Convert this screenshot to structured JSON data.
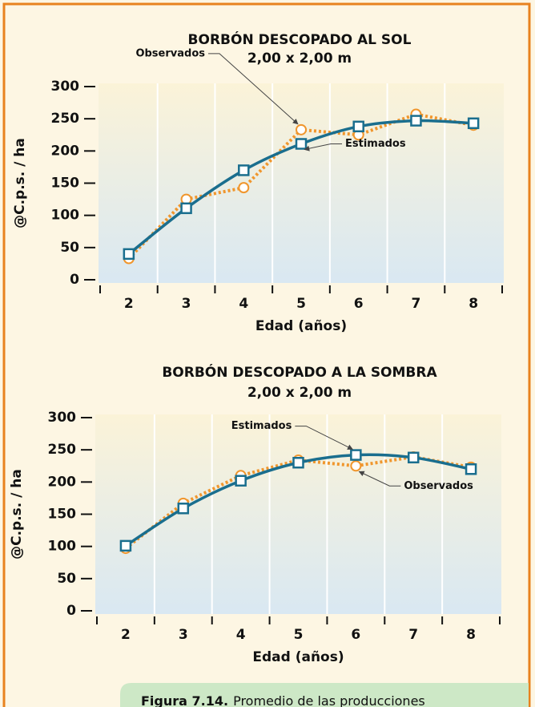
{
  "chart_data": [
    {
      "type": "line",
      "title": "BORBÓN DESCOPADO AL SOL",
      "subtitle": "2,00 x 2,00 m",
      "x_label": "Edad (años)",
      "y_label": "@C.p.s. / ha",
      "categories": [
        "2",
        "3",
        "4",
        "5",
        "6",
        "7",
        "8"
      ],
      "series": [
        {
          "name": "Observados",
          "color": "#f0962d",
          "marker": "circle",
          "dash": true,
          "smooth": false,
          "values": [
            33,
            125,
            143,
            233,
            225,
            257,
            240
          ]
        },
        {
          "name": "Estimados",
          "color": "#1a6e8e",
          "marker": "square",
          "dash": false,
          "smooth": true,
          "values": [
            40,
            111,
            170,
            211,
            238,
            247,
            243
          ]
        }
      ],
      "ylim": [
        0,
        300
      ],
      "yticks": [
        0,
        50,
        100,
        150,
        200,
        250,
        300
      ],
      "grid": true
    },
    {
      "type": "line",
      "title": "BORBÓN DESCOPADO A LA SOMBRA",
      "subtitle": "2,00 x 2,00 m",
      "x_label": "Edad (años)",
      "y_label": "@C.p.s. / ha",
      "categories": [
        "2",
        "3",
        "4",
        "5",
        "6",
        "7",
        "8"
      ],
      "series": [
        {
          "name": "Observados",
          "color": "#f0962d",
          "marker": "circle",
          "dash": true,
          "smooth": false,
          "values": [
            97,
            167,
            210,
            234,
            225,
            239,
            223
          ]
        },
        {
          "name": "Estimados",
          "color": "#1a6e8e",
          "marker": "square",
          "dash": false,
          "smooth": true,
          "values": [
            101,
            159,
            202,
            230,
            242,
            238,
            220
          ]
        }
      ],
      "ylim": [
        0,
        300
      ],
      "yticks": [
        0,
        50,
        100,
        150,
        200,
        250,
        300
      ],
      "grid": true
    }
  ],
  "caption": {
    "label": "Figura 7.14.",
    "text": "Promedio de las producciones"
  }
}
